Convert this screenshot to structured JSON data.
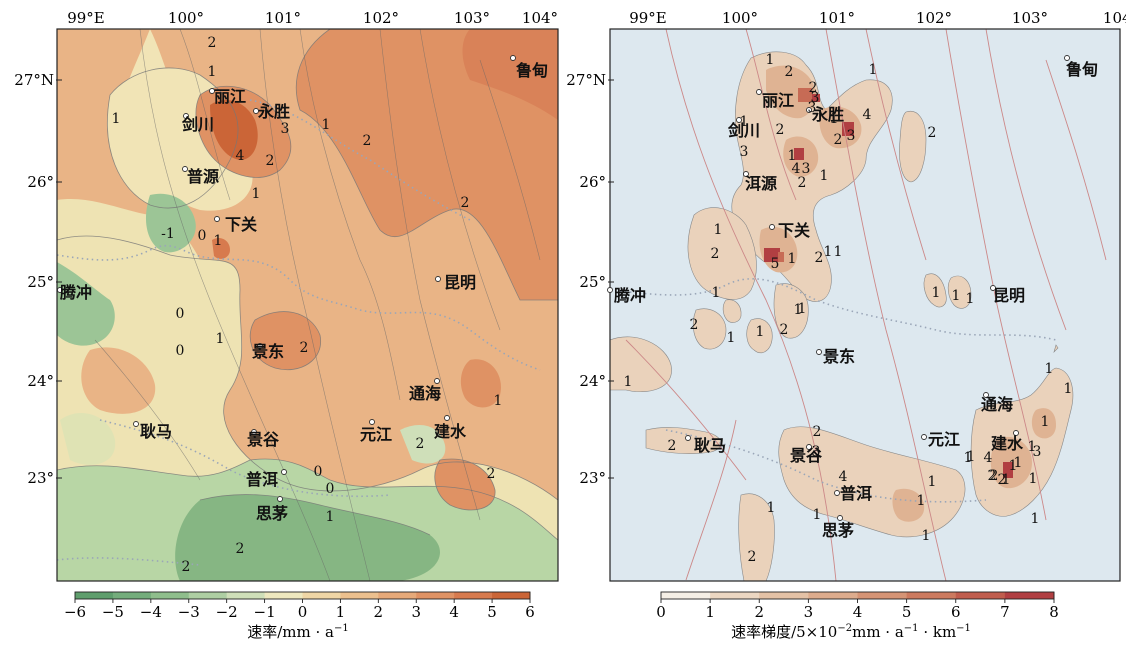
{
  "colors": {
    "rate_scale": [
      "#5f9e6d",
      "#74ad7c",
      "#8fbe8c",
      "#aecfa3",
      "#cfdfb9",
      "#eee8bf",
      "#efd6a6",
      "#ecc08e",
      "#e6a979",
      "#df9264",
      "#d77a4e",
      "#cb6537"
    ],
    "gradient_scale": [
      "#f5efe6",
      "#ecd7c2",
      "#e4c2a6",
      "#ddac8d",
      "#d59475",
      "#cc7a5f",
      "#c05d4d",
      "#b13f42"
    ],
    "sea_background": "#dde8ef",
    "fault_line": "#cc8888",
    "contour_line": "#777777",
    "boundary_dots": "#9aa6b8",
    "station_marker": "#ffffff"
  },
  "left_map": {
    "lon_ticks": [
      "99°E",
      "100°",
      "101°",
      "102°",
      "103°",
      "104°"
    ],
    "lat_ticks": [
      "27°N",
      "26°",
      "25°",
      "24°",
      "23°"
    ],
    "stations": [
      {
        "id": "lijiang",
        "name": "丽江"
      },
      {
        "id": "yongsheng",
        "name": "永胜"
      },
      {
        "id": "jianchuan",
        "name": "剑川"
      },
      {
        "id": "pu-yuan",
        "name": "普源"
      },
      {
        "id": "xiaguan",
        "name": "下关"
      },
      {
        "id": "kunming",
        "name": "昆明"
      },
      {
        "id": "tengchong",
        "name": "腾冲"
      },
      {
        "id": "jingdong",
        "name": "景东"
      },
      {
        "id": "tonghai",
        "name": "通海"
      },
      {
        "id": "gengma",
        "name": "耿马"
      },
      {
        "id": "jinggu",
        "name": "景谷"
      },
      {
        "id": "yuanjiang",
        "name": "元江"
      },
      {
        "id": "jianshui",
        "name": "建水"
      },
      {
        "id": "puer",
        "name": "普洱"
      },
      {
        "id": "simao",
        "name": "思茅"
      },
      {
        "id": "ludian",
        "name": "鲁甸"
      }
    ],
    "contour_labels": [
      "2",
      "1",
      "1",
      "1",
      "3",
      "4",
      "2",
      "1",
      "2",
      "1",
      "0",
      "-1",
      "1",
      "2",
      "0",
      "1",
      "2",
      "2",
      "2",
      "0",
      "0",
      "1",
      "2",
      "2",
      "0"
    ],
    "colorbar": {
      "ticks": [
        "−6",
        "−5",
        "−4",
        "−3",
        "−2",
        "−1",
        "0",
        "1",
        "2",
        "3",
        "4",
        "5",
        "6"
      ],
      "title": "速率/mm · a",
      "title_sup": "−1"
    }
  },
  "right_map": {
    "lon_ticks": [
      "99°E",
      "100°",
      "101°",
      "102°",
      "103°",
      "104°"
    ],
    "lat_ticks": [
      "27°N",
      "26°",
      "25°",
      "24°",
      "23°"
    ],
    "stations": [
      {
        "id": "lijiang",
        "name": "丽江"
      },
      {
        "id": "yongsheng",
        "name": "永胜"
      },
      {
        "id": "jianchuan",
        "name": "剑川"
      },
      {
        "id": "eryuan",
        "name": "洱源"
      },
      {
        "id": "xiaguan",
        "name": "下关"
      },
      {
        "id": "kunming",
        "name": "昆明"
      },
      {
        "id": "tengchong",
        "name": "腾冲"
      },
      {
        "id": "jingdong",
        "name": "景东"
      },
      {
        "id": "tonghai",
        "name": "通海"
      },
      {
        "id": "gengma",
        "name": "耿马"
      },
      {
        "id": "jinggu",
        "name": "景谷"
      },
      {
        "id": "yuanjiang",
        "name": "元江"
      },
      {
        "id": "jianshui",
        "name": "建水"
      },
      {
        "id": "puer",
        "name": "普洱"
      },
      {
        "id": "simao",
        "name": "思茅"
      },
      {
        "id": "ludian",
        "name": "鲁甸"
      }
    ],
    "contour_labels": [
      "1",
      "2",
      "1",
      "3",
      "2",
      "3",
      "1",
      "3",
      "2",
      "4",
      "1",
      "2",
      "3",
      "1",
      "4",
      "3",
      "2",
      "1",
      "1",
      "2",
      "1",
      "2",
      "5",
      "1",
      "2",
      "1",
      "1",
      "2",
      "1",
      "1",
      "1",
      "1",
      "1",
      "2",
      "1",
      "1",
      "1",
      "2",
      "2",
      "3",
      "4",
      "1",
      "1",
      "1",
      "2",
      "1",
      "1",
      "1",
      "1",
      "1",
      "1",
      "1",
      "2",
      "2",
      "1",
      "1",
      "1",
      "4",
      "3",
      "2",
      "1",
      "1",
      "1"
    ],
    "colorbar": {
      "ticks": [
        "0",
        "1",
        "2",
        "3",
        "4",
        "5",
        "6",
        "7",
        "8"
      ],
      "title": "速率梯度/5×10",
      "title_sup": "−2",
      "title_tail": "mm · a",
      "title_sup2": "−1",
      "title_tail2": " · km",
      "title_sup3": "−1"
    }
  }
}
